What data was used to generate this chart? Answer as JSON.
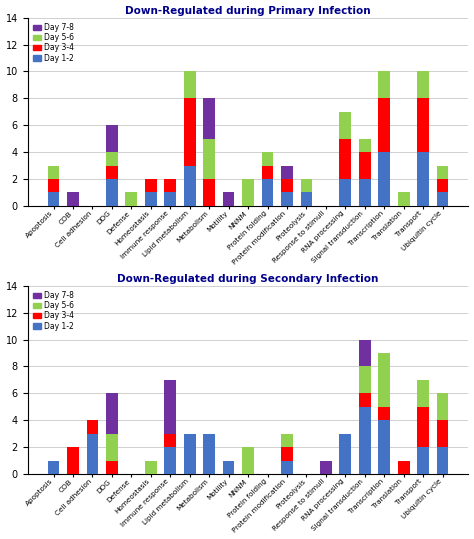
{
  "categories": [
    "Apoptosis",
    "COB",
    "Cell adhesion",
    "DDG",
    "Defense",
    "Homeostasis",
    "Immune response",
    "Lipid metabolism",
    "Metabolism",
    "Motility",
    "NNNM",
    "Protein folding",
    "Protein modification",
    "Proteolysis",
    "Response to stimuli",
    "RNA processing",
    "Signal transduction",
    "Transcription",
    "Translation",
    "Transport",
    "Ubiquitin cycle"
  ],
  "primary": {
    "title": "Down-Regulated during Primary Infection",
    "day12": [
      1,
      0,
      0,
      2,
      0,
      1,
      1,
      3,
      0,
      0,
      0,
      2,
      1,
      1,
      0,
      2,
      2,
      4,
      0,
      4,
      1
    ],
    "day34": [
      1,
      0,
      0,
      1,
      0,
      1,
      1,
      5,
      2,
      0,
      0,
      1,
      1,
      0,
      0,
      3,
      2,
      4,
      0,
      4,
      1
    ],
    "day56": [
      1,
      0,
      0,
      1,
      1,
      0,
      0,
      2,
      3,
      0,
      2,
      1,
      0,
      1,
      0,
      2,
      1,
      2,
      1,
      2,
      1
    ],
    "day78": [
      0,
      1,
      0,
      2,
      0,
      0,
      0,
      0,
      3,
      1,
      0,
      0,
      1,
      0,
      0,
      0,
      0,
      0,
      0,
      0,
      0
    ]
  },
  "secondary": {
    "title": "Down-Regulated during Secondary Infection",
    "day12": [
      1,
      0,
      3,
      0,
      0,
      0,
      2,
      3,
      3,
      1,
      0,
      0,
      1,
      0,
      0,
      3,
      5,
      4,
      0,
      2,
      2
    ],
    "day34": [
      0,
      2,
      1,
      1,
      0,
      0,
      1,
      0,
      0,
      0,
      0,
      0,
      1,
      0,
      0,
      0,
      1,
      1,
      1,
      3,
      2
    ],
    "day56": [
      0,
      0,
      0,
      2,
      0,
      1,
      0,
      0,
      0,
      0,
      2,
      0,
      1,
      0,
      0,
      0,
      2,
      4,
      0,
      2,
      2
    ],
    "day78": [
      0,
      0,
      0,
      3,
      0,
      0,
      4,
      0,
      0,
      0,
      0,
      0,
      0,
      0,
      1,
      0,
      2,
      0,
      0,
      0,
      0
    ]
  },
  "colors": {
    "day12": "#4472C4",
    "day34": "#FF0000",
    "day56": "#92D050",
    "day78": "#7030A0"
  },
  "ylim": [
    0,
    14
  ],
  "yticks": [
    0,
    2,
    4,
    6,
    8,
    10,
    12,
    14
  ],
  "bg_color": "#FFFFFF",
  "grid_color": "#D0D0D0"
}
